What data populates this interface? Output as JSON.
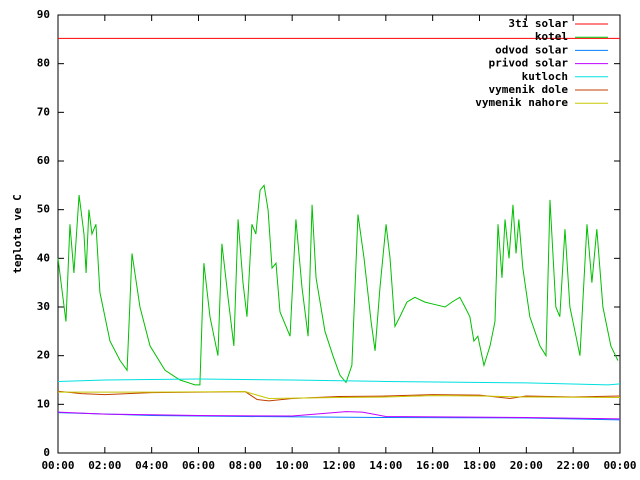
{
  "chart_data": {
    "type": "line",
    "ylabel": "teplota ve C",
    "xlim": [
      0,
      24
    ],
    "xticks": [
      {
        "value": 0,
        "label": "00:00"
      },
      {
        "value": 2,
        "label": "02:00"
      },
      {
        "value": 4,
        "label": "04:00"
      },
      {
        "value": 6,
        "label": "06:00"
      },
      {
        "value": 8,
        "label": "08:00"
      },
      {
        "value": 10,
        "label": "10:00"
      },
      {
        "value": 12,
        "label": "12:00"
      },
      {
        "value": 14,
        "label": "14:00"
      },
      {
        "value": 16,
        "label": "16:00"
      },
      {
        "value": 18,
        "label": "18:00"
      },
      {
        "value": 20,
        "label": "20:00"
      },
      {
        "value": 22,
        "label": "22:00"
      },
      {
        "value": 24,
        "label": "00:00"
      }
    ],
    "ylim": [
      0,
      90
    ],
    "yticks": [
      0,
      10,
      20,
      30,
      40,
      50,
      60,
      70,
      80,
      90
    ],
    "legend": "top-right",
    "series": [
      {
        "name": "3ti solar",
        "color": "#ff0000",
        "x": [
          0,
          24
        ],
        "values": [
          85.2,
          85.2
        ]
      },
      {
        "name": "kotel",
        "color": "#00c000",
        "x": [
          0,
          0.34,
          0.51,
          0.68,
          0.9,
          1.11,
          1.2,
          1.32,
          1.45,
          1.62,
          1.79,
          2.22,
          2.65,
          2.95,
          3.16,
          3.5,
          3.93,
          4.57,
          5.21,
          5.85,
          6.06,
          6.23,
          6.49,
          6.83,
          7.0,
          7.26,
          7.51,
          7.69,
          7.9,
          8.07,
          8.28,
          8.45,
          8.63,
          8.8,
          8.97,
          9.14,
          9.31,
          9.48,
          9.91,
          10.16,
          10.42,
          10.68,
          10.85,
          11.02,
          11.4,
          11.74,
          12.04,
          12.3,
          12.55,
          12.81,
          13.07,
          13.37,
          13.54,
          13.75,
          14.01,
          14.18,
          14.39,
          14.6,
          14.9,
          15.24,
          15.67,
          16.1,
          16.53,
          16.82,
          17.16,
          17.38,
          17.59,
          17.76,
          17.93,
          18.19,
          18.45,
          18.66,
          18.79,
          18.96,
          19.09,
          19.26,
          19.43,
          19.56,
          19.68,
          19.85,
          20.15,
          20.58,
          20.84,
          21.01,
          21.26,
          21.43,
          21.65,
          21.86,
          22.12,
          22.29,
          22.59,
          22.8,
          23.01,
          23.27,
          23.61,
          23.91
        ],
        "values": [
          40,
          27,
          47,
          37,
          53,
          45,
          37,
          50,
          45,
          47,
          33,
          23,
          19,
          17,
          41,
          30,
          22,
          17,
          15,
          14,
          14,
          39,
          28,
          20,
          43,
          32,
          22,
          48,
          35,
          28,
          47,
          45,
          54,
          55,
          50,
          38,
          39,
          29,
          24,
          48,
          34,
          24,
          51,
          36,
          25,
          20,
          16,
          14.5,
          18,
          49,
          40,
          27,
          21,
          34,
          47,
          40,
          26,
          28,
          31,
          32,
          31,
          30.5,
          30,
          31,
          32,
          30,
          28,
          23,
          24,
          18,
          22,
          27,
          47,
          36,
          48,
          40,
          51,
          41,
          48,
          38,
          28,
          22,
          20,
          52,
          30,
          28,
          46,
          30,
          24,
          20,
          47,
          35,
          46,
          30,
          22,
          19
        ]
      },
      {
        "name": "odvod solar",
        "color": "#0080ff",
        "x": [
          0,
          4,
          8,
          14,
          20,
          24
        ],
        "values": [
          8.3,
          7.7,
          7.5,
          7.3,
          7.2,
          6.8
        ]
      },
      {
        "name": "privod solar",
        "color": "#c000ff",
        "x": [
          0,
          2,
          6,
          10,
          12.3,
          13,
          14,
          20,
          24
        ],
        "values": [
          8.4,
          8.0,
          7.7,
          7.6,
          8.5,
          8.4,
          7.5,
          7.3,
          7.0
        ]
      },
      {
        "name": "kutloch",
        "color": "#00e0e0",
        "x": [
          0,
          2,
          6,
          10,
          14,
          20,
          23.5,
          24
        ],
        "values": [
          14.7,
          15.0,
          15.2,
          15.0,
          14.7,
          14.4,
          14.0,
          14.2
        ]
      },
      {
        "name": "vymenik dole",
        "color": "#c04000",
        "x": [
          0,
          1,
          2,
          4,
          8,
          8.5,
          9,
          10,
          12,
          14,
          16,
          18,
          19.3,
          20,
          22,
          24
        ],
        "values": [
          12.7,
          12.2,
          12.0,
          12.4,
          12.6,
          11.0,
          10.7,
          11.2,
          11.6,
          11.7,
          12.0,
          11.9,
          11.2,
          11.7,
          11.5,
          11.7
        ]
      },
      {
        "name": "vymenik nahore",
        "color": "#c8c800",
        "x": [
          0,
          4,
          8,
          9,
          12,
          14,
          16,
          18,
          20,
          24
        ],
        "values": [
          12.5,
          12.5,
          12.6,
          11.2,
          11.4,
          11.5,
          11.8,
          11.7,
          11.5,
          11.4
        ]
      }
    ]
  }
}
